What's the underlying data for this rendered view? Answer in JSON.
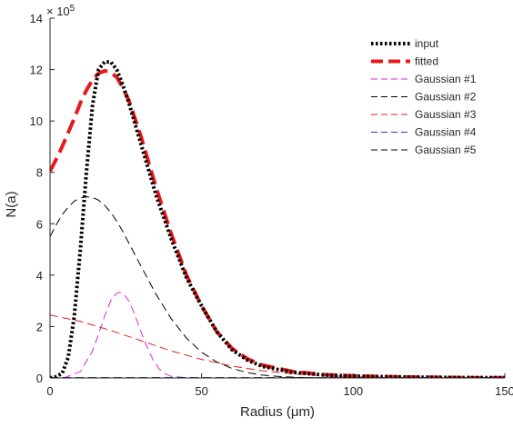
{
  "chart_data": {
    "type": "line",
    "xlabel": "Radius (μm)",
    "ylabel": "N(a)",
    "y_multiplier_label": "× 10",
    "y_multiplier_exponent": "5",
    "xlim": [
      0,
      150
    ],
    "ylim": [
      0,
      14
    ],
    "xticks": [
      0,
      50,
      100,
      150
    ],
    "yticks": [
      0,
      2,
      4,
      6,
      8,
      10,
      12,
      14
    ],
    "xtick_labels": [
      "0",
      "50",
      "100",
      "150"
    ],
    "ytick_labels": [
      "0",
      "2",
      "4",
      "6",
      "8",
      "10",
      "12",
      "14"
    ],
    "grid": false,
    "legend_position": "top-right",
    "series": [
      {
        "name": "input",
        "color": "#000000",
        "dash": "dotted",
        "width": 4,
        "x": [
          0,
          2,
          4,
          6,
          8,
          10,
          12,
          14,
          16,
          18,
          20,
          22,
          24,
          26,
          28,
          30,
          35,
          40,
          45,
          50,
          55,
          60,
          65,
          70,
          80,
          90,
          100,
          110,
          120,
          130,
          140,
          150
        ],
        "y": [
          0,
          0.05,
          0.18,
          0.8,
          2.4,
          5.0,
          8.0,
          10.6,
          12.0,
          12.3,
          12.3,
          12.0,
          11.4,
          10.7,
          9.9,
          9.1,
          7.1,
          5.4,
          3.9,
          2.8,
          1.8,
          1.1,
          0.7,
          0.45,
          0.22,
          0.12,
          0.07,
          0.05,
          0.03,
          0.02,
          0.01,
          0.01
        ]
      },
      {
        "name": "fitted",
        "color": "#e8191a",
        "dash": "long-dash",
        "width": 4,
        "x": [
          0,
          2,
          4,
          6,
          8,
          10,
          12,
          14,
          16,
          18,
          20,
          22,
          24,
          26,
          28,
          30,
          35,
          40,
          45,
          50,
          55,
          60,
          65,
          70,
          80,
          90,
          100,
          110,
          120,
          130,
          140,
          150
        ],
        "y": [
          8.05,
          8.5,
          9.0,
          9.55,
          10.1,
          10.7,
          11.2,
          11.6,
          11.85,
          11.95,
          11.9,
          11.7,
          11.3,
          10.8,
          10.1,
          9.4,
          7.4,
          5.6,
          4.0,
          2.8,
          1.8,
          1.15,
          0.75,
          0.5,
          0.25,
          0.13,
          0.08,
          0.05,
          0.03,
          0.02,
          0.01,
          0.01
        ]
      },
      {
        "name": "Gaussian #1",
        "color": "#e020e0",
        "dash": "dashed",
        "width": 1,
        "x": [
          0,
          5,
          10,
          14,
          16,
          18,
          20,
          22,
          23,
          24,
          26,
          28,
          30,
          32,
          34,
          36,
          38,
          40,
          45,
          50,
          150
        ],
        "y": [
          0,
          0.02,
          0.25,
          1.05,
          1.7,
          2.4,
          3.0,
          3.3,
          3.33,
          3.3,
          3.0,
          2.45,
          1.8,
          1.2,
          0.7,
          0.35,
          0.16,
          0.06,
          0.01,
          0,
          0
        ]
      },
      {
        "name": "Gaussian #2",
        "color": "#000000",
        "dash": "dashed",
        "width": 1,
        "x": [
          0,
          2,
          4,
          6,
          8,
          10,
          12,
          14,
          16,
          18,
          20,
          22,
          24,
          26,
          28,
          30,
          35,
          40,
          45,
          50,
          55,
          60,
          65,
          70,
          75,
          80,
          85,
          90,
          100,
          150
        ],
        "y": [
          5.5,
          5.95,
          6.35,
          6.65,
          6.88,
          7.0,
          7.05,
          7.02,
          6.92,
          6.72,
          6.45,
          6.1,
          5.7,
          5.25,
          4.8,
          4.35,
          3.25,
          2.3,
          1.55,
          1.0,
          0.62,
          0.37,
          0.21,
          0.11,
          0.06,
          0.03,
          0.01,
          0.01,
          0,
          0
        ]
      },
      {
        "name": "Gaussian #3",
        "color": "#e8191a",
        "dash": "dashed",
        "width": 1,
        "x": [
          0,
          10,
          20,
          30,
          40,
          50,
          60,
          70,
          80,
          90,
          100,
          110,
          120,
          130,
          140,
          150
        ],
        "y": [
          2.45,
          2.2,
          1.85,
          1.45,
          1.05,
          0.72,
          0.46,
          0.28,
          0.16,
          0.09,
          0.05,
          0.03,
          0.02,
          0.01,
          0.01,
          0.01
        ]
      },
      {
        "name": "Gaussian #4",
        "color": "#3333cc",
        "dash": "dashed",
        "width": 1,
        "x": [
          0,
          150
        ],
        "y": [
          0.01,
          0.01
        ]
      },
      {
        "name": "Gaussian #5",
        "color": "#000000",
        "dash": "dashed",
        "width": 1,
        "x": [
          0,
          30,
          60,
          90,
          120,
          150
        ],
        "y": [
          0.01,
          0.01,
          0.01,
          0.01,
          0.01,
          0.01
        ]
      }
    ]
  }
}
